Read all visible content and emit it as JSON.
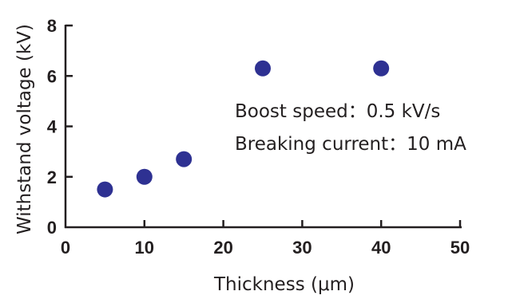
{
  "chart_data": {
    "type": "scatter",
    "xlabel": "Thickness (μm)",
    "ylabel": "Withstand voltage (kV)",
    "xlim": [
      0,
      50
    ],
    "ylim": [
      0,
      8
    ],
    "xticks": [
      "0",
      "10",
      "20",
      "30",
      "40",
      "50"
    ],
    "yticks": [
      "0",
      "2",
      "4",
      "6",
      "8"
    ],
    "grid": false,
    "marker_color": "#2e3192",
    "points": [
      {
        "x": 5,
        "y": 1.5
      },
      {
        "x": 10,
        "y": 2.0
      },
      {
        "x": 15,
        "y": 2.7
      },
      {
        "x": 25,
        "y": 6.3
      },
      {
        "x": 40,
        "y": 6.3
      }
    ],
    "annotations": [
      "Boost speed：0.5 kV/s",
      "Breaking current：10 mA"
    ]
  }
}
